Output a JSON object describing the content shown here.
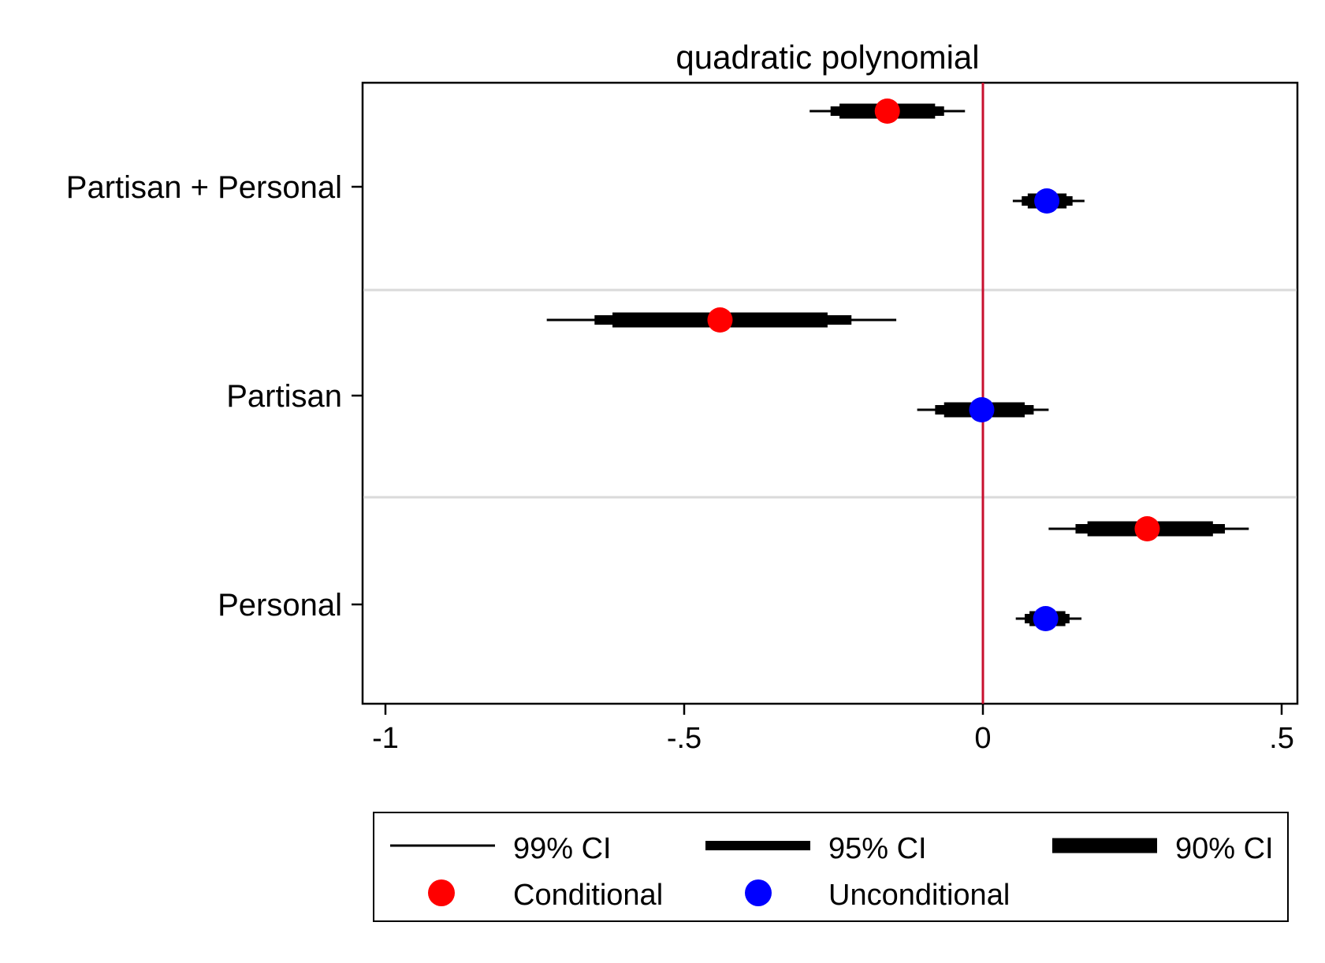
{
  "chart_data": {
    "type": "coefficient-plot",
    "title": "quadratic polynomial",
    "xlabel": "",
    "ylabel": "",
    "xlim": [
      -1,
      0.5
    ],
    "x_ticks": [
      {
        "value": -1,
        "label": "-1"
      },
      {
        "value": -0.5,
        "label": "-.5"
      },
      {
        "value": 0,
        "label": "0"
      },
      {
        "value": 0.5,
        "label": ".5"
      }
    ],
    "reference_line": {
      "x": 0,
      "color": "#c8102e"
    },
    "grid": "horizontal separators between groups",
    "legend_position": "bottom",
    "categories": [
      "Partisan + Personal",
      "Partisan",
      "Personal"
    ],
    "series": [
      {
        "name": "Conditional",
        "color": "#ff0000",
        "estimates": [
          {
            "category": "Partisan + Personal",
            "point": -0.16,
            "ci99": [
              -0.29,
              -0.03
            ],
            "ci95": [
              -0.255,
              -0.065
            ],
            "ci90": [
              -0.24,
              -0.08
            ]
          },
          {
            "category": "Partisan",
            "point": -0.44,
            "ci99": [
              -0.73,
              -0.145
            ],
            "ci95": [
              -0.65,
              -0.22
            ],
            "ci90": [
              -0.62,
              -0.26
            ]
          },
          {
            "category": "Personal",
            "point": 0.275,
            "ci99": [
              0.11,
              0.445
            ],
            "ci95": [
              0.155,
              0.405
            ],
            "ci90": [
              0.175,
              0.385
            ]
          }
        ]
      },
      {
        "name": "Unconditional",
        "color": "#0000ff",
        "estimates": [
          {
            "category": "Partisan + Personal",
            "point": 0.107,
            "ci99": [
              0.05,
              0.17
            ],
            "ci95": [
              0.065,
              0.15
            ],
            "ci90": [
              0.075,
              0.14
            ]
          },
          {
            "category": "Partisan",
            "point": -0.002,
            "ci99": [
              -0.11,
              0.11
            ],
            "ci95": [
              -0.08,
              0.085
            ],
            "ci90": [
              -0.065,
              0.07
            ]
          },
          {
            "category": "Personal",
            "point": 0.105,
            "ci99": [
              0.055,
              0.165
            ],
            "ci95": [
              0.07,
              0.145
            ],
            "ci90": [
              0.078,
              0.138
            ]
          }
        ]
      }
    ],
    "legend": {
      "ci_entries": [
        {
          "key": "ci99",
          "label": "99% CI"
        },
        {
          "key": "ci95",
          "label": "95% CI"
        },
        {
          "key": "ci90",
          "label": "90% CI"
        }
      ],
      "marker_entries": [
        {
          "label": "Conditional",
          "color": "#ff0000"
        },
        {
          "label": "Unconditional",
          "color": "#0000ff"
        }
      ]
    }
  }
}
